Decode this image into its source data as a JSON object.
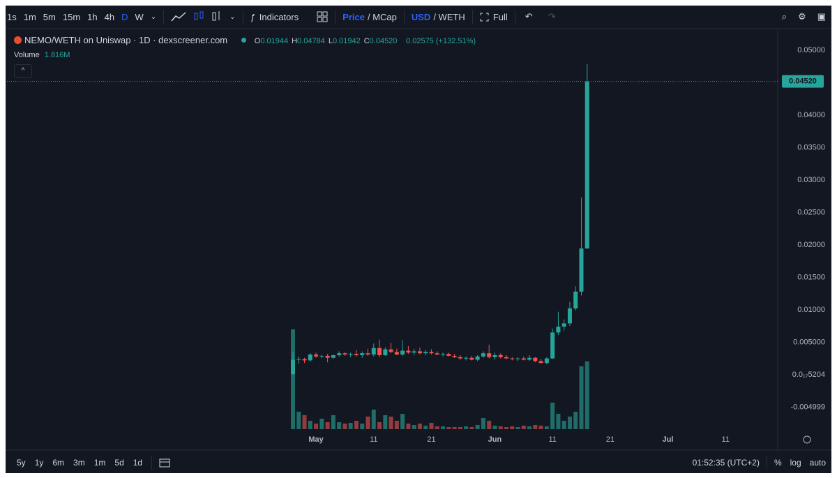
{
  "toolbar": {
    "intervals": [
      "1s",
      "1m",
      "5m",
      "15m",
      "1h",
      "4h",
      "D",
      "W"
    ],
    "indicators": "Indicators",
    "price": "Price",
    "mcap": "/ MCap",
    "usd": "USD",
    "weth": "/ WETH",
    "full": "Full"
  },
  "legend": {
    "symbol": "NEMO/WETH on Uniswap · 1D · dexscreener.com",
    "ohlc": [
      {
        "key": "O",
        "value": "0.01944"
      },
      {
        "key": "H",
        "value": "0.04784"
      },
      {
        "key": "L",
        "value": "0.01942"
      },
      {
        "key": "C",
        "value": "0.04520"
      }
    ],
    "change": "0.02575 (+132.51%)",
    "volume_title": "Volume",
    "volume_value": "1.816M"
  },
  "chart_data": {
    "type": "candlestick",
    "categories": [
      null,
      null,
      null,
      null,
      "May",
      null,
      null,
      null,
      null,
      null,
      null,
      null,
      null,
      null,
      "11",
      null,
      null,
      null,
      null,
      null,
      null,
      null,
      null,
      null,
      "21",
      null,
      null,
      null,
      null,
      null,
      null,
      null,
      null,
      null,
      null,
      "Jun",
      null,
      null,
      null,
      null,
      null,
      null,
      null,
      null,
      null,
      "11",
      null,
      null,
      null,
      null,
      null,
      null,
      null,
      null,
      null,
      "21",
      null,
      null,
      null,
      null,
      null,
      null,
      null,
      null,
      null,
      "Jul",
      null,
      null,
      null,
      null,
      null,
      null,
      null,
      null,
      null,
      "11",
      null,
      null,
      null,
      null
    ],
    "open": [
      0.0001,
      0.0023,
      0.0024,
      0.0022,
      0.0031,
      0.0028,
      0.0029,
      0.0026,
      0.003,
      0.0033,
      0.0031,
      0.0032,
      0.003,
      0.0033,
      0.0031,
      0.0041,
      0.003,
      0.0039,
      0.0035,
      0.0031,
      0.0037,
      0.0034,
      0.0036,
      0.0033,
      0.0035,
      0.0033,
      0.0031,
      0.0032,
      0.0029,
      0.0027,
      0.0025,
      0.0026,
      0.0023,
      0.0028,
      0.0033,
      0.0027,
      0.003,
      0.0027,
      0.0025,
      0.0024,
      0.0025,
      0.0023,
      0.0026,
      0.0021,
      0.0018,
      0.0025,
      0.0065,
      0.0074,
      0.0079,
      0.0102,
      0.0128,
      0.01944,
      null,
      null,
      null,
      null,
      null,
      null,
      null,
      null,
      null,
      null,
      null,
      null,
      null,
      null,
      null,
      null,
      null,
      null,
      null,
      null,
      null,
      null,
      null,
      null,
      null,
      null,
      null,
      null
    ],
    "high": [
      0.0035,
      0.0028,
      0.0026,
      0.0033,
      0.0034,
      0.0031,
      0.0032,
      0.0031,
      0.0036,
      0.0035,
      0.0034,
      0.0038,
      0.0036,
      0.004,
      0.0048,
      0.0054,
      0.0042,
      0.0049,
      0.004,
      0.0053,
      0.0044,
      0.004,
      0.0042,
      0.0038,
      0.0039,
      0.0036,
      0.0034,
      0.0034,
      0.0032,
      0.003,
      0.0028,
      0.0029,
      0.003,
      0.0036,
      0.0046,
      0.0034,
      0.0033,
      0.003,
      0.0027,
      0.0027,
      0.0028,
      0.003,
      0.0027,
      0.0024,
      0.0027,
      0.0071,
      0.0097,
      0.0085,
      0.0112,
      0.0136,
      0.0273,
      0.04784,
      null,
      null,
      null,
      null,
      null,
      null,
      null,
      null,
      null,
      null,
      null,
      null,
      null,
      null,
      null,
      null,
      null,
      null,
      null,
      null,
      null,
      null,
      null,
      null,
      null,
      null,
      null,
      null
    ],
    "low": [
      0.0,
      0.0017,
      0.0018,
      0.002,
      0.0026,
      0.0025,
      0.0019,
      0.0024,
      0.0028,
      0.0029,
      0.0027,
      0.0028,
      0.0026,
      0.0029,
      0.0028,
      0.0027,
      0.0029,
      0.0033,
      0.003,
      0.0029,
      0.0032,
      0.003,
      0.0031,
      0.003,
      0.0031,
      0.003,
      0.0028,
      0.0028,
      0.0026,
      0.0023,
      0.0022,
      0.0022,
      0.0021,
      0.0026,
      0.0025,
      0.0023,
      0.0025,
      0.0024,
      0.0022,
      0.0021,
      0.0022,
      0.0021,
      0.0019,
      0.0017,
      0.0016,
      0.0024,
      0.0061,
      0.0068,
      0.0075,
      0.0099,
      0.0122,
      0.01942,
      null,
      null,
      null,
      null,
      null,
      null,
      null,
      null,
      null,
      null,
      null,
      null,
      null,
      null,
      null,
      null,
      null,
      null,
      null,
      null,
      null,
      null,
      null,
      null,
      null,
      null,
      null,
      null
    ],
    "close": [
      0.0023,
      0.0024,
      0.0022,
      0.0031,
      0.0028,
      0.0029,
      0.0026,
      0.003,
      0.0033,
      0.0031,
      0.0032,
      0.003,
      0.0033,
      0.0031,
      0.0041,
      0.003,
      0.0039,
      0.0035,
      0.0031,
      0.0037,
      0.0034,
      0.0036,
      0.0033,
      0.0035,
      0.0033,
      0.0031,
      0.0032,
      0.0029,
      0.0027,
      0.0025,
      0.0026,
      0.0023,
      0.0028,
      0.0033,
      0.0027,
      0.003,
      0.0027,
      0.0025,
      0.0024,
      0.0025,
      0.0023,
      0.0026,
      0.0021,
      0.0018,
      0.0025,
      0.0065,
      0.0074,
      0.0079,
      0.0102,
      0.0128,
      0.01944,
      0.0452,
      null,
      null,
      null,
      null,
      null,
      null,
      null,
      null,
      null,
      null,
      null,
      null,
      null,
      null,
      null,
      null,
      null,
      null,
      null,
      null,
      null,
      null,
      null,
      null,
      null,
      null,
      null,
      null
    ],
    "volume": [
      2674000,
      467500,
      374000,
      224400,
      149600,
      280500,
      187000,
      374000,
      187000,
      149600,
      168300,
      224400,
      149600,
      336600,
      523600,
      187000,
      374000,
      336600,
      224400,
      411400,
      149600,
      112200,
      149600,
      93500,
      168300,
      74800,
      74800,
      56100,
      56100,
      56100,
      74800,
      56100,
      112200,
      299200,
      224400,
      93500,
      74800,
      56100,
      74800,
      56100,
      93500,
      74800,
      112200,
      93500,
      74800,
      710600,
      411400,
      224400,
      336600,
      467500,
      1683000,
      1816000,
      null,
      null,
      null,
      null,
      null,
      null,
      null,
      null,
      null,
      null,
      null,
      null,
      null,
      null,
      null,
      null,
      null,
      null,
      null,
      null,
      null,
      null,
      null,
      null,
      null,
      null,
      null,
      null
    ],
    "up_color": "#26a69a",
    "down_color": "#ef5350",
    "volume_up_color": "#26a69a99",
    "volume_down_color": "#ef535099",
    "ylim": [
      -0.0084,
      0.0529
    ],
    "yticks": [
      {
        "value": 0.05,
        "label": "0.05000"
      },
      {
        "value": 0.04,
        "label": "0.04000"
      },
      {
        "value": 0.035,
        "label": "0.03500"
      },
      {
        "value": 0.03,
        "label": "0.03000"
      },
      {
        "value": 0.025,
        "label": "0.02500"
      },
      {
        "value": 0.02,
        "label": "0.02000"
      },
      {
        "value": 0.015,
        "label": "0.01500"
      },
      {
        "value": 0.01,
        "label": "0.01000"
      },
      {
        "value": 0.005,
        "label": "0.005000"
      },
      {
        "value": 5.204e-18,
        "label": "0.0₁₇5204"
      },
      {
        "value": -0.004999,
        "label": "-0.004999"
      }
    ],
    "grid": false,
    "price_line": {
      "value": 0.0452,
      "label": "0.04520"
    }
  },
  "footer": {
    "ranges": [
      "5y",
      "1y",
      "6m",
      "3m",
      "1m",
      "5d",
      "1d"
    ],
    "clock": "01:52:35 (UTC+2)",
    "percent": "%",
    "log": "log",
    "auto": "auto"
  }
}
